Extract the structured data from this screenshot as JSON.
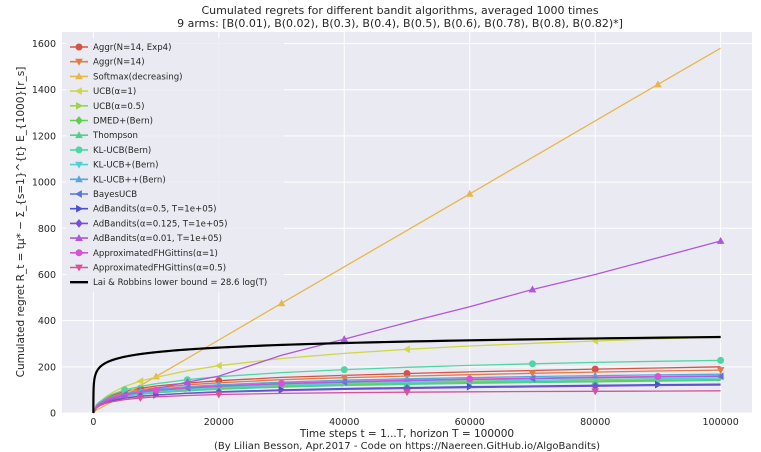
{
  "chart_data": {
    "type": "line",
    "title": "Cumulated regrets for different bandit algorithms, averaged 1000 times",
    "subtitle": "9 arms: [B(0.01), B(0.02), B(0.3), B(0.4), B(0.5), B(0.6), B(0.78), B(0.8), B(0.82)*]",
    "xlabel": "Time steps t = 1...T, horizon T = 100000",
    "ylabel": "Cumulated regret R_t = tμ* − Σ_{s=1}^{t} E_{1000}[r_s]",
    "caption": "(By Lilian Besson, Apr.2017 - Code on https://Naereen.GitHub.io/AlgoBandits)",
    "xlim": [
      -5000,
      105000
    ],
    "ylim": [
      0,
      1650
    ],
    "x_ticks": [
      0,
      20000,
      40000,
      60000,
      80000,
      100000
    ],
    "y_ticks": [
      0,
      200,
      400,
      600,
      800,
      1000,
      1200,
      1400,
      1600
    ],
    "grid": true,
    "background": "#eaeaf2",
    "legend_position": "upper-left",
    "x": [
      0,
      500,
      1000,
      2000,
      3000,
      5000,
      7500,
      10000,
      15000,
      20000,
      30000,
      40000,
      50000,
      60000,
      70000,
      80000,
      90000,
      100000
    ],
    "series": [
      {
        "name": "Aggr(N=14, Exp4)",
        "color": "#d65244",
        "marker": "circle",
        "values": [
          0,
          35,
          48,
          65,
          77,
          94,
          107,
          117,
          130,
          140,
          154,
          163,
          171,
          178,
          184,
          190,
          195,
          200
        ]
      },
      {
        "name": "Aggr(N=14)",
        "color": "#e07b47",
        "marker": "triangle-down",
        "values": [
          0,
          33,
          45,
          61,
          72,
          88,
          100,
          109,
          122,
          131,
          144,
          153,
          160,
          166,
          172,
          177,
          182,
          186
        ]
      },
      {
        "name": "Softmax(decreasing)",
        "color": "#e6b84a",
        "marker": "triangle-up",
        "values": [
          0,
          14,
          20,
          34,
          49,
          81,
          119,
          158,
          237,
          316,
          475,
          633,
          791,
          949,
          1107,
          1265,
          1423,
          1580
        ]
      },
      {
        "name": "UCB(α=1)",
        "color": "#cfd64a",
        "marker": "triangle-left",
        "values": [
          0,
          32,
          47,
          70,
          88,
          115,
          138,
          155,
          183,
          205,
          236,
          258,
          276,
          290,
          302,
          312,
          321,
          329
        ]
      },
      {
        "name": "UCB(α=0.5)",
        "color": "#9fd24a",
        "marker": "triangle-right",
        "values": [
          0,
          30,
          42,
          56,
          65,
          78,
          88,
          95,
          105,
          112,
          122,
          129,
          134,
          139,
          143,
          146,
          149,
          152
        ]
      },
      {
        "name": "DMED+(Bern)",
        "color": "#5fcf4c",
        "marker": "diamond",
        "values": [
          0,
          28,
          39,
          53,
          62,
          74,
          83,
          90,
          99,
          106,
          116,
          123,
          128,
          132,
          136,
          139,
          142,
          145
        ]
      },
      {
        "name": "Thompson",
        "color": "#4fd08a",
        "marker": "triangle-up",
        "values": [
          0,
          27,
          38,
          51,
          60,
          72,
          81,
          87,
          96,
          103,
          112,
          119,
          124,
          128,
          132,
          135,
          138,
          141
        ]
      },
      {
        "name": "KL-UCB(Bern)",
        "color": "#4fd6a5",
        "marker": "circle",
        "values": [
          0,
          34,
          48,
          67,
          81,
          100,
          115,
          127,
          144,
          157,
          175,
          188,
          198,
          206,
          213,
          219,
          224,
          228
        ]
      },
      {
        "name": "KL-UCB+(Bern)",
        "color": "#4fd0d4",
        "marker": "triangle-down",
        "values": [
          0,
          28,
          40,
          54,
          63,
          76,
          86,
          93,
          103,
          110,
          120,
          127,
          133,
          137,
          141,
          145,
          148,
          151
        ]
      },
      {
        "name": "KL-UCB++(Bern)",
        "color": "#54a8e0",
        "marker": "triangle-up",
        "values": [
          0,
          30,
          43,
          58,
          69,
          84,
          95,
          103,
          114,
          122,
          134,
          142,
          148,
          153,
          158,
          162,
          165,
          168
        ]
      },
      {
        "name": "BayesUCB",
        "color": "#5b76da",
        "marker": "triangle-left",
        "values": [
          0,
          29,
          41,
          56,
          66,
          80,
          90,
          98,
          108,
          116,
          127,
          134,
          140,
          145,
          149,
          153,
          156,
          159
        ]
      },
      {
        "name": "AdBandits(α=0.5, T=1e+05)",
        "color": "#4a4fcf",
        "marker": "triangle-right",
        "values": [
          0,
          24,
          33,
          45,
          53,
          64,
          72,
          78,
          86,
          92,
          100,
          106,
          110,
          114,
          117,
          120,
          123,
          125
        ]
      },
      {
        "name": "AdBandits(α=0.125, T=1e+05)",
        "color": "#7a4fd2",
        "marker": "diamond",
        "values": [
          0,
          25,
          35,
          47,
          55,
          66,
          73,
          78,
          85,
          90,
          97,
          102,
          106,
          110,
          113,
          116,
          119,
          121
        ]
      },
      {
        "name": "AdBandits(α=0.01, T=1e+05)",
        "color": "#b056da",
        "marker": "triangle-up",
        "values": [
          0,
          25,
          35,
          50,
          60,
          76,
          92,
          106,
          134,
          160,
          250,
          320,
          392,
          460,
          535,
          600,
          672,
          745
        ]
      },
      {
        "name": "ApproximatedFHGittins(α=1)",
        "color": "#d453d6",
        "marker": "circle",
        "values": [
          0,
          29,
          41,
          56,
          66,
          80,
          90,
          98,
          109,
          117,
          128,
          136,
          142,
          147,
          151,
          155,
          158,
          161
        ]
      },
      {
        "name": "ApproximatedFHGittins(α=0.5)",
        "color": "#d6539a",
        "marker": "triangle-down",
        "values": [
          0,
          22,
          31,
          42,
          49,
          58,
          65,
          70,
          76,
          80,
          85,
          88,
          90,
          92,
          93,
          94,
          95,
          96
        ]
      }
    ],
    "reference": {
      "name": "Lai & Robbins lower bound = 28.6 log(T)",
      "color": "#000000",
      "coefficient": 28.6
    }
  }
}
